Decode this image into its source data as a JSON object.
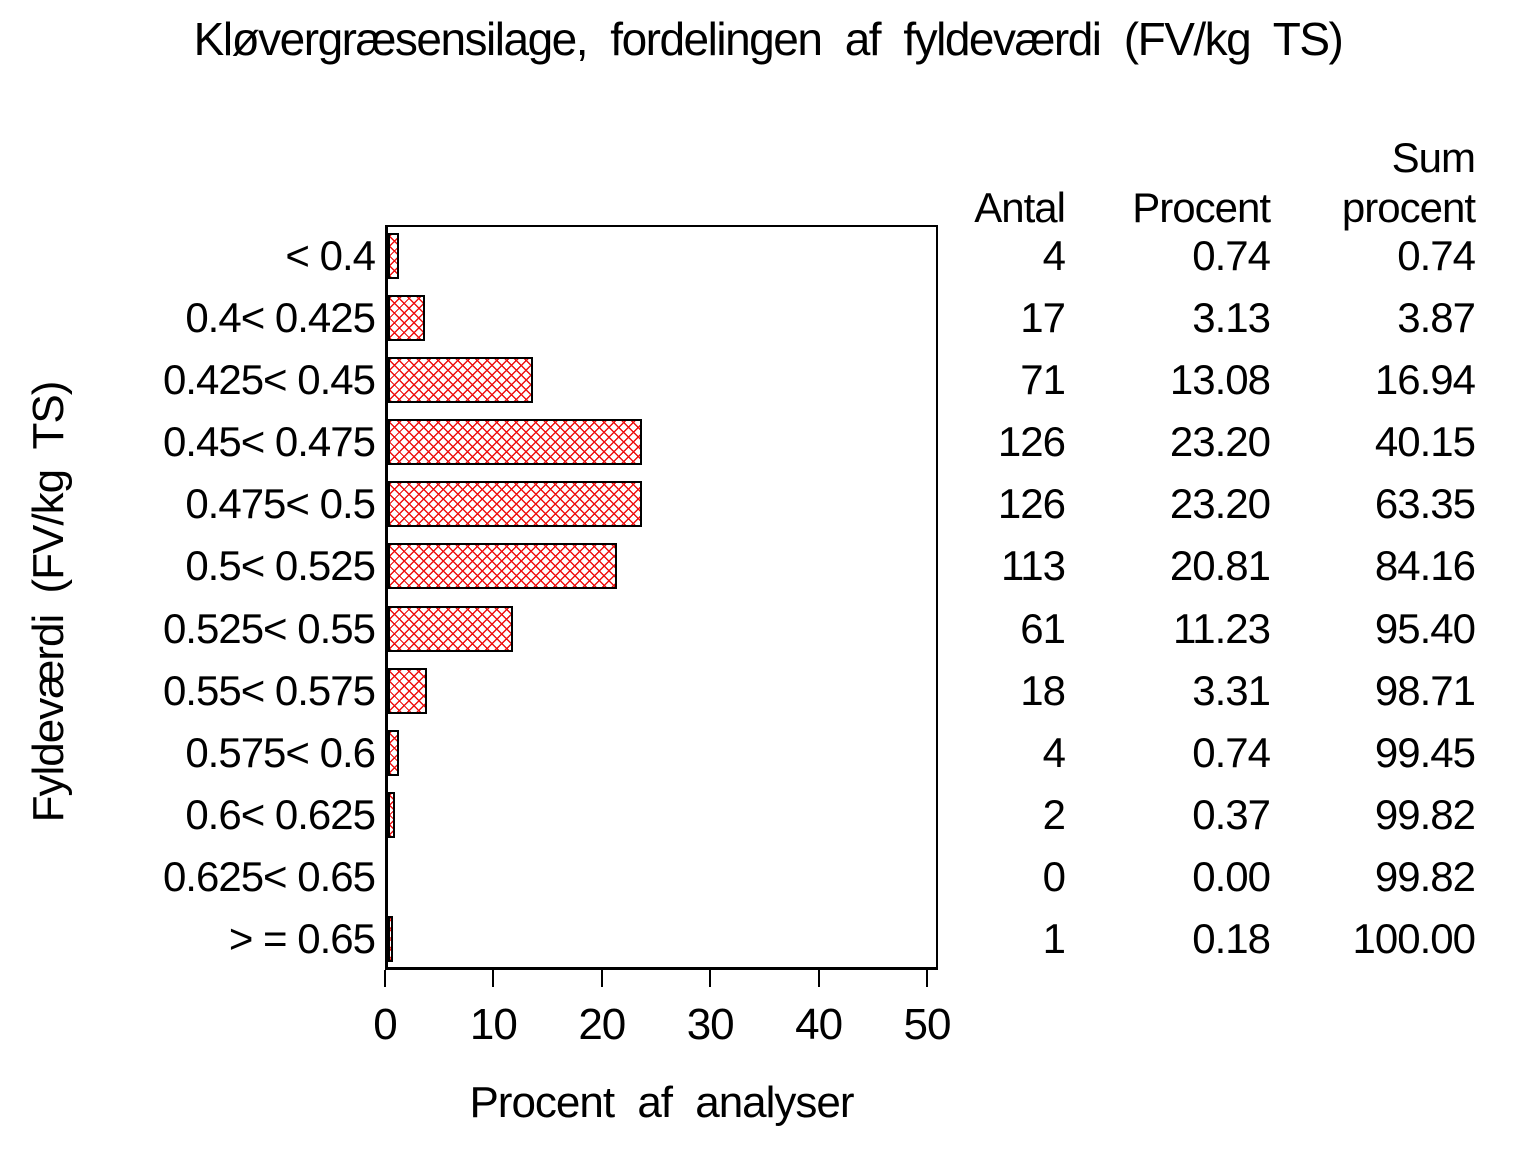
{
  "title": "Kløvergræsensilage, fordelingen af fyldeværdi (FV/kg TS)",
  "chart_data": {
    "type": "bar",
    "orientation": "horizontal",
    "title": "Kløvergræsensilage, fordelingen af fyldeværdi (FV/kg TS)",
    "xlabel": "Procent af analyser",
    "ylabel": "Fyldeværdi (FV/kg TS)",
    "xlim": [
      0,
      51
    ],
    "xticks": [
      0,
      10,
      20,
      30,
      40,
      50
    ],
    "grid": "off",
    "legend": "none",
    "bar_fill_pattern": "diagonal-crosshatch",
    "bar_pattern_color": "#ee1111",
    "bar_border_color": "#000000",
    "categories": [
      "< 0.4",
      "0.4< 0.425",
      "0.425< 0.45",
      "0.45< 0.475",
      "0.475< 0.5",
      "0.5< 0.525",
      "0.525< 0.55",
      "0.55< 0.575",
      "0.575< 0.6",
      "0.6< 0.625",
      "0.625< 0.65",
      "> = 0.65"
    ],
    "values": [
      0.74,
      3.13,
      13.08,
      23.2,
      23.2,
      20.81,
      11.23,
      3.31,
      0.74,
      0.37,
      0.0,
      0.18
    ]
  },
  "table": {
    "headers": {
      "antal": "Antal",
      "procent": "Procent",
      "sum_line1": "Sum",
      "sum_line2": "procent"
    },
    "rows": [
      {
        "antal": "4",
        "procent": "0.74",
        "sum": "0.74"
      },
      {
        "antal": "17",
        "procent": "3.13",
        "sum": "3.87"
      },
      {
        "antal": "71",
        "procent": "13.08",
        "sum": "16.94"
      },
      {
        "antal": "126",
        "procent": "23.20",
        "sum": "40.15"
      },
      {
        "antal": "126",
        "procent": "23.20",
        "sum": "63.35"
      },
      {
        "antal": "113",
        "procent": "20.81",
        "sum": "84.16"
      },
      {
        "antal": "61",
        "procent": "11.23",
        "sum": "95.40"
      },
      {
        "antal": "18",
        "procent": "3.31",
        "sum": "98.71"
      },
      {
        "antal": "4",
        "procent": "0.74",
        "sum": "99.45"
      },
      {
        "antal": "2",
        "procent": "0.37",
        "sum": "99.82"
      },
      {
        "antal": "0",
        "procent": "0.00",
        "sum": "99.82"
      },
      {
        "antal": "1",
        "procent": "0.18",
        "sum": "100.00"
      }
    ]
  }
}
